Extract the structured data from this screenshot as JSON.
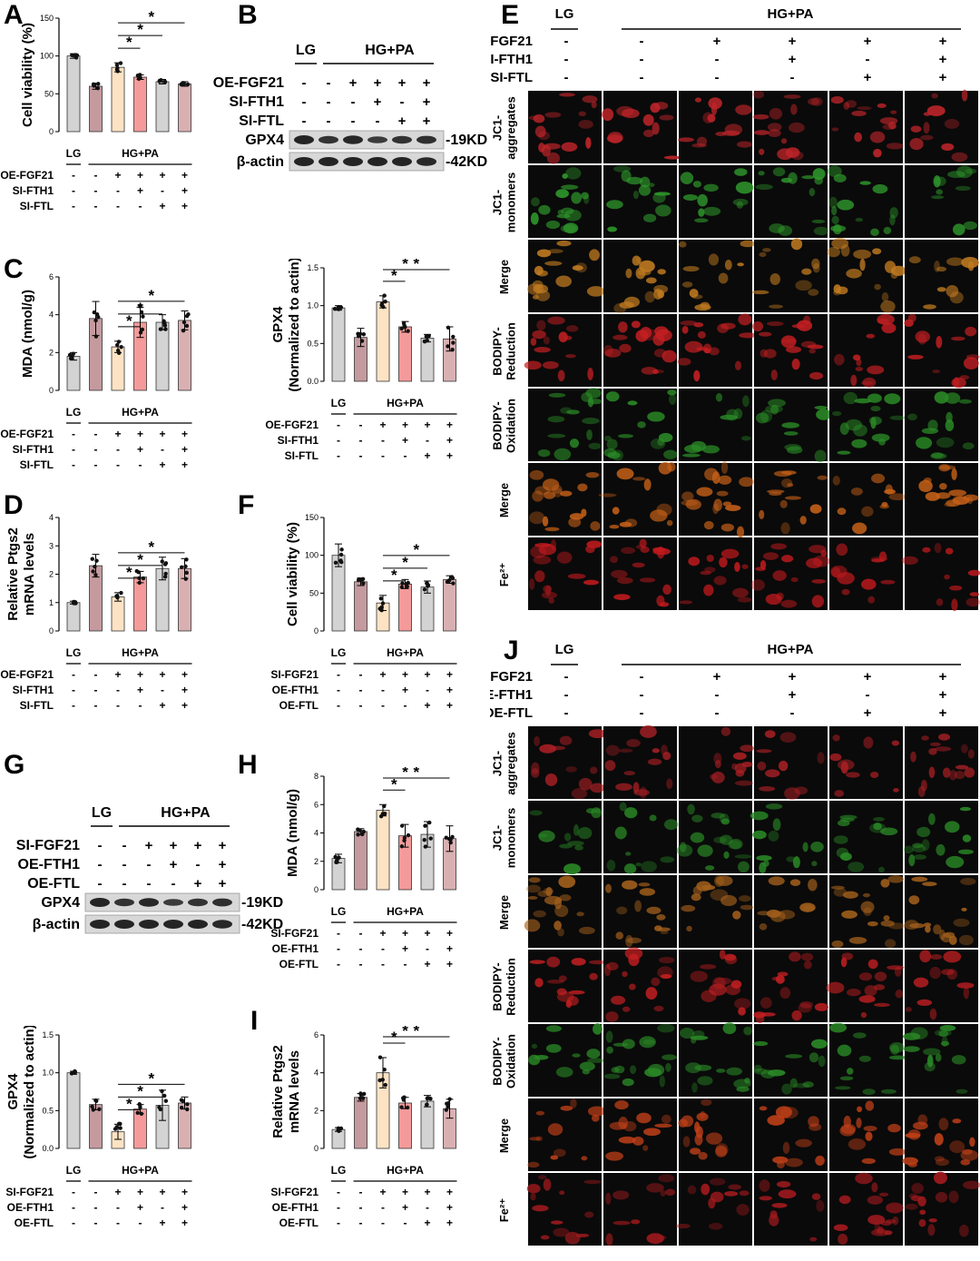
{
  "panels": {
    "A": "A",
    "B": "B",
    "C": "C",
    "D": "D",
    "E": "E",
    "F": "F",
    "G": "G",
    "H": "H",
    "I": "I",
    "J": "J"
  },
  "groups": {
    "lg": "LG",
    "hgpa": "HG+PA"
  },
  "treatments_oe": [
    {
      "label": "OE-FGF21",
      "signs": [
        "-",
        "-",
        "+",
        "+",
        "+",
        "+"
      ]
    },
    {
      "label": "SI-FTH1",
      "signs": [
        "-",
        "-",
        "-",
        "+",
        "-",
        "+"
      ]
    },
    {
      "label": "SI-FTL",
      "signs": [
        "-",
        "-",
        "-",
        "-",
        "+",
        "+"
      ]
    }
  ],
  "treatments_si": [
    {
      "label": "SI-FGF21",
      "signs": [
        "-",
        "-",
        "+",
        "+",
        "+",
        "+"
      ]
    },
    {
      "label": "OE-FTH1",
      "signs": [
        "-",
        "-",
        "-",
        "+",
        "-",
        "+"
      ]
    },
    {
      "label": "OE-FTL",
      "signs": [
        "-",
        "-",
        "-",
        "-",
        "+",
        "+"
      ]
    }
  ],
  "colors": [
    "#d3d3d3",
    "#c49a9e",
    "#fde3c4",
    "#f49a9a",
    "#d3d3d3",
    "#d9b0b2"
  ],
  "sig": "*",
  "blots": {
    "b_gpx4": "GPX4",
    "b_actin": "β-actin",
    "b_gpx4_kd": "-19KD",
    "b_actin_kd": "-42KD"
  },
  "chart_data": [
    {
      "id": "A",
      "type": "bar",
      "ylabel": "Cell viability (%)",
      "ylim": [
        0,
        150
      ],
      "yticks": [
        0,
        50,
        100,
        150
      ],
      "values": [
        100,
        60,
        85,
        72,
        66,
        63
      ],
      "err": [
        3,
        4,
        6,
        3,
        3,
        3
      ]
    },
    {
      "id": "C1",
      "type": "bar",
      "ylabel": "MDA (nmol/g)",
      "ylim": [
        0,
        6
      ],
      "yticks": [
        0,
        2,
        4,
        6
      ],
      "values": [
        1.8,
        3.8,
        2.3,
        3.6,
        3.6,
        3.7
      ],
      "err": [
        0.2,
        0.9,
        0.3,
        0.8,
        0.4,
        0.5
      ]
    },
    {
      "id": "C2",
      "type": "bar",
      "ylabel": "GPX4",
      "ylabel2": "(Normalized to actin)",
      "ylim": [
        0,
        1.5
      ],
      "yticks": [
        0.0,
        0.5,
        1.0,
        1.5
      ],
      "values": [
        0.97,
        0.58,
        1.05,
        0.72,
        0.57,
        0.56
      ],
      "err": [
        0.03,
        0.12,
        0.08,
        0.07,
        0.05,
        0.16
      ]
    },
    {
      "id": "D",
      "type": "bar",
      "ylabel": "Relative Ptgs2",
      "ylabel2": "mRNA levels",
      "ylim": [
        0,
        4
      ],
      "yticks": [
        0,
        1,
        2,
        3,
        4
      ],
      "values": [
        1.0,
        2.3,
        1.2,
        1.9,
        2.2,
        2.2
      ],
      "err": [
        0.05,
        0.4,
        0.15,
        0.2,
        0.4,
        0.35
      ]
    },
    {
      "id": "F",
      "type": "bar",
      "ylabel": "Cell viability (%)",
      "ylim": [
        0,
        150
      ],
      "yticks": [
        0,
        50,
        100,
        150
      ],
      "values": [
        100,
        65,
        37,
        62,
        58,
        68
      ],
      "err": [
        15,
        5,
        10,
        6,
        8,
        5
      ]
    },
    {
      "id": "G2",
      "type": "bar",
      "ylabel": "GPX4",
      "ylabel2": "(Normalized to actin)",
      "ylim": [
        0,
        1.5
      ],
      "yticks": [
        0.0,
        0.5,
        1.0,
        1.5
      ],
      "values": [
        1.0,
        0.58,
        0.22,
        0.52,
        0.57,
        0.6
      ],
      "err": [
        0.02,
        0.07,
        0.1,
        0.06,
        0.2,
        0.08
      ]
    },
    {
      "id": "H",
      "type": "bar",
      "ylabel": "MDA (nmol/g)",
      "ylim": [
        0,
        8
      ],
      "yticks": [
        0,
        2,
        4,
        6,
        8
      ],
      "values": [
        2.2,
        4.1,
        5.6,
        3.8,
        3.9,
        3.6
      ],
      "err": [
        0.3,
        0.2,
        0.4,
        0.8,
        0.9,
        0.9
      ]
    },
    {
      "id": "I",
      "type": "bar",
      "ylabel": "Relative Ptgs2",
      "ylabel2": "mRNA levels",
      "ylim": [
        0,
        6
      ],
      "yticks": [
        0,
        2,
        4,
        6
      ],
      "values": [
        1.0,
        2.7,
        4.0,
        2.4,
        2.5,
        2.1
      ],
      "err": [
        0.1,
        0.2,
        0.8,
        0.3,
        0.3,
        0.5
      ]
    }
  ],
  "micro": {
    "row_labels_e": [
      [
        "JC1-",
        "aggregates"
      ],
      [
        "JC1-",
        "monomers"
      ],
      [
        "Merge"
      ],
      [
        "BODIPY-",
        "Reduction"
      ],
      [
        "BODIPY-",
        "Oxidation"
      ],
      [
        "Merge"
      ],
      [
        "Fe²⁺"
      ]
    ],
    "row_labels_j": [
      [
        "JC1-",
        "aggregates"
      ],
      [
        "JC1-",
        "monomers"
      ],
      [
        "Merge"
      ],
      [
        "BODIPY-",
        "Reduction"
      ],
      [
        "BODIPY-",
        "Oxidation"
      ],
      [
        "Merge"
      ],
      [
        "Fe²⁺"
      ]
    ],
    "row_colors_e": [
      "#c0252a",
      "#2f9a2c",
      "#c07a20",
      "#c51f22",
      "#2a8a26",
      "#c56018",
      "#c21a1e"
    ],
    "row_colors_j": [
      "#a81f24",
      "#2a8a26",
      "#a4601c",
      "#c51f22",
      "#2a8a26",
      "#c04018",
      "#a51a1e"
    ]
  }
}
